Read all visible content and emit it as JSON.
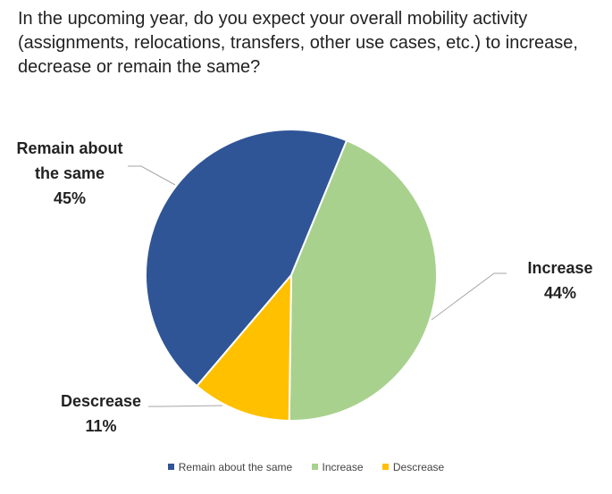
{
  "chart_data": {
    "type": "pie",
    "title": "In the upcoming year, do you expect your overall mobility activity (assignments, relocations, transfers, other use cases, etc.) to increase, decrease or remain the same?",
    "series": [
      {
        "name": "",
        "slices": [
          {
            "label": "Remain about the same",
            "data_label_lines": [
              "Remain about",
              "the same"
            ],
            "value": 45,
            "value_label": "45%",
            "color": "#2F5597"
          },
          {
            "label": "Increase",
            "data_label_lines": [
              "Increase"
            ],
            "value": 44,
            "value_label": "44%",
            "color": "#A9D18E"
          },
          {
            "label": "Descrease",
            "data_label_lines": [
              "Descrease"
            ],
            "value": 11,
            "value_label": "11%",
            "color": "#FFC000"
          }
        ]
      }
    ],
    "legend": {
      "position": "bottom",
      "entries": [
        "Remain about the same",
        "Increase",
        "Descrease"
      ]
    }
  }
}
